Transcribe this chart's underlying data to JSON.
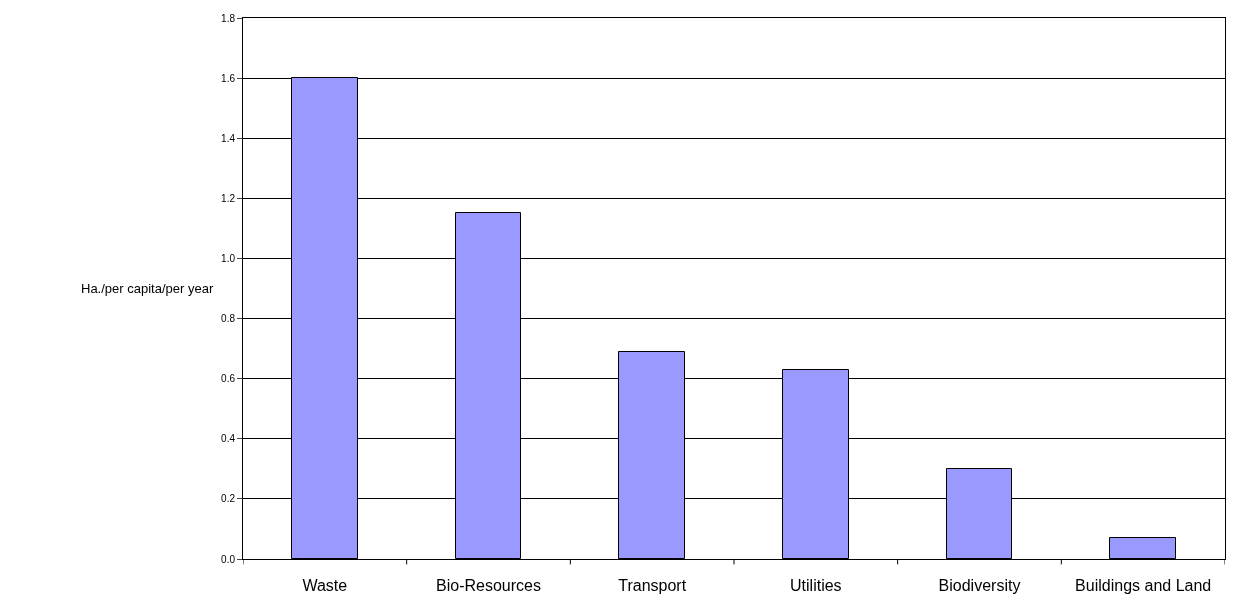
{
  "chart_data": {
    "type": "bar",
    "ylabel": "Ha./per capita/per year",
    "categories": [
      "Waste",
      "Bio-Resources",
      "Transport",
      "Utilities",
      "Biodiversity",
      "Buildings and Land"
    ],
    "values": [
      1.6,
      1.15,
      0.69,
      0.63,
      0.3,
      0.07
    ],
    "color": "#9999ff",
    "ylim": [
      0,
      1.8
    ],
    "yticks": [
      {
        "value": 0,
        "label": "0.0"
      },
      {
        "value": 0.2,
        "label": "0.2"
      },
      {
        "value": 0.4,
        "label": "0.4"
      },
      {
        "value": 0.6,
        "label": "0.6"
      },
      {
        "value": 0.8,
        "label": "0.8"
      },
      {
        "value": 1.0,
        "label": "1.0"
      },
      {
        "value": 1.2,
        "label": "1.2"
      },
      {
        "value": 1.4,
        "label": "1.4"
      },
      {
        "value": 1.6,
        "label": "1.6"
      },
      {
        "value": 1.8,
        "label": "1.8"
      }
    ],
    "grid": "y"
  }
}
